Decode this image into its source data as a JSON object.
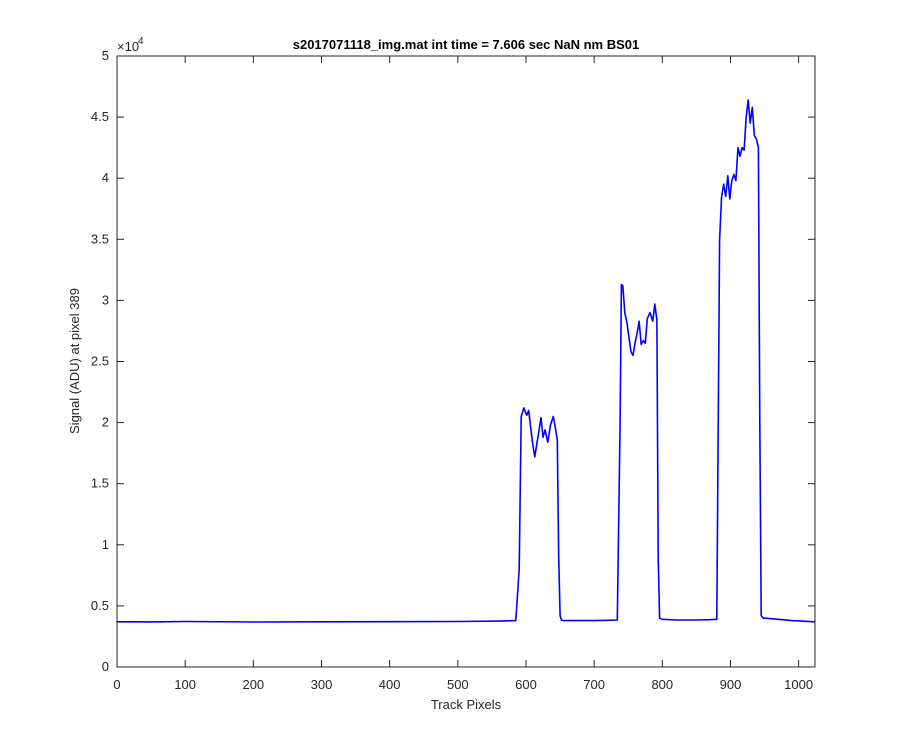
{
  "chart_data": {
    "type": "line",
    "title": "s2017071118_img.mat int time = 7.606 sec  NaN nm BS01",
    "xlabel": "Track Pixels",
    "ylabel": "Signal (ADU) at pixel 389",
    "y_exponent_label": "×10",
    "y_exponent": "4",
    "xlim": [
      0,
      1024
    ],
    "ylim": [
      0,
      50000
    ],
    "xticks": [
      0,
      100,
      200,
      300,
      400,
      500,
      600,
      700,
      800,
      900,
      1000
    ],
    "xtick_labels": [
      "0",
      "100",
      "200",
      "300",
      "400",
      "500",
      "600",
      "700",
      "800",
      "900",
      "1000"
    ],
    "yticks": [
      0,
      5000,
      10000,
      15000,
      20000,
      25000,
      30000,
      35000,
      40000,
      45000,
      50000
    ],
    "ytick_labels": [
      "0",
      "0.5",
      "1",
      "1.5",
      "2",
      "2.5",
      "3",
      "3.5",
      "4",
      "4.5",
      "5"
    ],
    "grid": false,
    "series": [
      {
        "color": "#0000ff",
        "x": [
          0,
          50,
          100,
          200,
          300,
          400,
          500,
          560,
          585,
          590,
          593,
          597,
          601,
          604,
          607,
          610,
          613,
          616,
          619,
          622,
          625,
          628,
          632,
          636,
          640,
          643,
          646,
          648,
          650,
          652,
          656,
          680,
          700,
          720,
          734,
          738,
          740,
          742,
          745,
          748,
          751,
          754,
          757,
          760,
          763,
          766,
          769,
          772,
          775,
          778,
          782,
          786,
          789,
          792,
          794,
          796,
          800,
          820,
          850,
          870,
          880,
          884,
          887,
          890,
          893,
          896,
          899,
          902,
          905,
          908,
          911,
          914,
          917,
          920,
          923,
          926,
          929,
          932,
          935,
          938,
          941,
          943,
          945,
          948,
          960,
          990,
          1024
        ],
        "y": [
          3700,
          3690,
          3720,
          3680,
          3700,
          3710,
          3720,
          3760,
          3800,
          8000,
          20500,
          21200,
          20600,
          21000,
          19500,
          18200,
          17200,
          18300,
          19300,
          20400,
          18800,
          19400,
          18400,
          19800,
          20500,
          19600,
          18600,
          9000,
          4200,
          3850,
          3800,
          3800,
          3800,
          3820,
          3850,
          20000,
          31300,
          31200,
          29000,
          28200,
          27000,
          25800,
          25500,
          26500,
          27300,
          28300,
          26400,
          26700,
          26500,
          28500,
          29000,
          28300,
          29700,
          28400,
          9000,
          4000,
          3900,
          3850,
          3850,
          3870,
          3900,
          35000,
          38500,
          39500,
          38500,
          40200,
          38300,
          39800,
          40300,
          39800,
          42500,
          41800,
          42500,
          42300,
          45000,
          46400,
          44500,
          45800,
          43500,
          43200,
          42500,
          20000,
          4200,
          4000,
          3950,
          3800,
          3700
        ]
      }
    ]
  }
}
